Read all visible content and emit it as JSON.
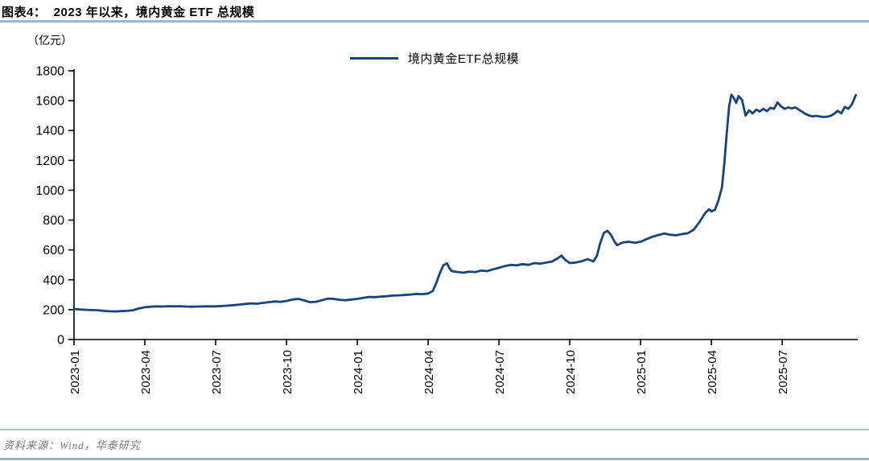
{
  "figure": {
    "title": "图表4：  2023 年以来，境内黄金 ETF 总规模",
    "unit_label": "（亿元）",
    "source": "资料来源：Wind，华泰研究"
  },
  "colors": {
    "line": "#164480",
    "divider": "#9DB3CA",
    "source_text": "#7a7a7a",
    "axis": "#000000"
  },
  "chart_data": {
    "type": "line",
    "title": "2023 年以来，境内黄金 ETF 总规模",
    "ylabel": "（亿元）",
    "legend_entries": [
      "境内黄金ETF总规模"
    ],
    "legend_position": "top-center",
    "grid": false,
    "ylim": [
      0,
      1800
    ],
    "yticks": [
      0,
      200,
      400,
      600,
      800,
      1000,
      1200,
      1400,
      1600,
      1800
    ],
    "xtick_labels": [
      "2023-01",
      "2023-04",
      "2023-07",
      "2023-10",
      "2024-01",
      "2024-04",
      "2024-07",
      "2024-10",
      "2025-01",
      "2025-04",
      "2025-07"
    ],
    "xtick_month_step": 3,
    "x_axis_start": "2023-01",
    "x_axis_total_months": 33.2,
    "series": [
      {
        "name": "境内黄金ETF总规模",
        "color": "#164480",
        "points_format": "[months_since_2023_01, value_yi_yuan]",
        "points": [
          [
            0,
            205
          ],
          [
            0.25,
            201
          ],
          [
            0.5,
            199
          ],
          [
            0.75,
            197
          ],
          [
            1,
            196
          ],
          [
            1.25,
            192
          ],
          [
            1.5,
            189
          ],
          [
            1.75,
            188
          ],
          [
            2,
            190
          ],
          [
            2.25,
            192
          ],
          [
            2.5,
            196
          ],
          [
            2.75,
            208
          ],
          [
            3,
            216
          ],
          [
            3.25,
            220
          ],
          [
            3.5,
            222
          ],
          [
            3.75,
            221
          ],
          [
            4,
            223
          ],
          [
            4.25,
            222
          ],
          [
            4.5,
            223
          ],
          [
            4.75,
            221
          ],
          [
            5,
            220
          ],
          [
            5.25,
            221
          ],
          [
            5.5,
            222
          ],
          [
            5.75,
            222
          ],
          [
            6,
            222
          ],
          [
            6.25,
            224
          ],
          [
            6.5,
            227
          ],
          [
            6.75,
            230
          ],
          [
            7,
            234
          ],
          [
            7.25,
            238
          ],
          [
            7.5,
            242
          ],
          [
            7.75,
            240
          ],
          [
            8,
            245
          ],
          [
            8.25,
            250
          ],
          [
            8.5,
            255
          ],
          [
            8.75,
            253
          ],
          [
            9,
            258
          ],
          [
            9.25,
            268
          ],
          [
            9.5,
            272
          ],
          [
            9.75,
            262
          ],
          [
            10,
            250
          ],
          [
            10.25,
            253
          ],
          [
            10.5,
            263
          ],
          [
            10.75,
            274
          ],
          [
            11,
            272
          ],
          [
            11.25,
            266
          ],
          [
            11.5,
            263
          ],
          [
            11.75,
            268
          ],
          [
            12,
            272
          ],
          [
            12.25,
            279
          ],
          [
            12.5,
            285
          ],
          [
            12.75,
            284
          ],
          [
            13,
            287
          ],
          [
            13.25,
            290
          ],
          [
            13.5,
            294
          ],
          [
            13.75,
            296
          ],
          [
            14,
            298
          ],
          [
            14.25,
            301
          ],
          [
            14.5,
            305
          ],
          [
            14.75,
            304
          ],
          [
            15,
            308
          ],
          [
            15.2,
            325
          ],
          [
            15.35,
            380
          ],
          [
            15.5,
            445
          ],
          [
            15.65,
            498
          ],
          [
            15.8,
            510
          ],
          [
            15.9,
            478
          ],
          [
            16,
            458
          ],
          [
            16.25,
            452
          ],
          [
            16.5,
            448
          ],
          [
            16.75,
            455
          ],
          [
            17,
            452
          ],
          [
            17.25,
            462
          ],
          [
            17.5,
            458
          ],
          [
            17.75,
            470
          ],
          [
            18,
            480
          ],
          [
            18.25,
            492
          ],
          [
            18.5,
            500
          ],
          [
            18.75,
            497
          ],
          [
            19,
            505
          ],
          [
            19.25,
            500
          ],
          [
            19.5,
            512
          ],
          [
            19.75,
            508
          ],
          [
            20,
            515
          ],
          [
            20.25,
            522
          ],
          [
            20.5,
            545
          ],
          [
            20.65,
            562
          ],
          [
            20.8,
            535
          ],
          [
            21,
            512
          ],
          [
            21.25,
            516
          ],
          [
            21.5,
            524
          ],
          [
            21.75,
            538
          ],
          [
            22,
            524
          ],
          [
            22.15,
            560
          ],
          [
            22.3,
            650
          ],
          [
            22.45,
            715
          ],
          [
            22.6,
            728
          ],
          [
            22.75,
            700
          ],
          [
            22.9,
            655
          ],
          [
            23,
            632
          ],
          [
            23.25,
            650
          ],
          [
            23.5,
            655
          ],
          [
            23.75,
            648
          ],
          [
            24,
            655
          ],
          [
            24.25,
            672
          ],
          [
            24.5,
            688
          ],
          [
            24.75,
            700
          ],
          [
            25,
            710
          ],
          [
            25.25,
            702
          ],
          [
            25.5,
            698
          ],
          [
            25.75,
            706
          ],
          [
            26,
            712
          ],
          [
            26.25,
            735
          ],
          [
            26.5,
            788
          ],
          [
            26.75,
            850
          ],
          [
            26.9,
            872
          ],
          [
            27,
            858
          ],
          [
            27.15,
            868
          ],
          [
            27.3,
            932
          ],
          [
            27.45,
            1020
          ],
          [
            27.55,
            1180
          ],
          [
            27.65,
            1380
          ],
          [
            27.75,
            1560
          ],
          [
            27.85,
            1640
          ],
          [
            27.95,
            1618
          ],
          [
            28.05,
            1585
          ],
          [
            28.15,
            1630
          ],
          [
            28.3,
            1605
          ],
          [
            28.45,
            1500
          ],
          [
            28.6,
            1535
          ],
          [
            28.75,
            1515
          ],
          [
            28.9,
            1540
          ],
          [
            29.05,
            1528
          ],
          [
            29.2,
            1545
          ],
          [
            29.35,
            1530
          ],
          [
            29.5,
            1552
          ],
          [
            29.65,
            1545
          ],
          [
            29.8,
            1588
          ],
          [
            29.95,
            1562
          ],
          [
            30.1,
            1545
          ],
          [
            30.25,
            1555
          ],
          [
            30.4,
            1548
          ],
          [
            30.55,
            1555
          ],
          [
            30.7,
            1540
          ],
          [
            30.85,
            1525
          ],
          [
            31,
            1510
          ],
          [
            31.15,
            1500
          ],
          [
            31.3,
            1495
          ],
          [
            31.45,
            1498
          ],
          [
            31.6,
            1494
          ],
          [
            31.75,
            1490
          ],
          [
            31.9,
            1493
          ],
          [
            32.05,
            1498
          ],
          [
            32.2,
            1512
          ],
          [
            32.35,
            1532
          ],
          [
            32.5,
            1515
          ],
          [
            32.65,
            1558
          ],
          [
            32.8,
            1545
          ],
          [
            32.95,
            1575
          ],
          [
            33.05,
            1612
          ],
          [
            33.12,
            1638
          ]
        ]
      }
    ]
  }
}
